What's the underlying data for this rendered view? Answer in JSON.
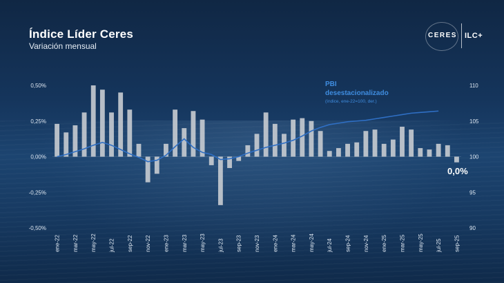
{
  "header": {
    "title": "Índice Líder Ceres",
    "subtitle": "Variación mensual"
  },
  "logo": {
    "left": "CERES",
    "right": "ILC+"
  },
  "chart_data": {
    "type": "bar",
    "title": "Índice Líder Ceres",
    "subtitle": "Variación mensual",
    "y_left": {
      "range": [
        -0.5,
        0.5
      ],
      "ticks": [
        0.5,
        0.25,
        0,
        -0.25,
        -0.5
      ],
      "tick_labels": [
        "0,50%",
        "0,25%",
        "0,00%",
        "-0,25%",
        "-0,50%"
      ]
    },
    "y_right": {
      "range": [
        90,
        110
      ],
      "ticks": [
        110,
        105,
        100,
        95,
        90
      ],
      "tick_labels": [
        "110",
        "105",
        "100",
        "95",
        "90"
      ]
    },
    "x_tick_labels": [
      "ene-22",
      "mar-22",
      "may-22",
      "jul-22",
      "sep-22",
      "nov-22",
      "ene-23",
      "mar-23",
      "may-23",
      "jul-23",
      "sep-23",
      "nov-23",
      "ene-24",
      "mar-24",
      "may-24",
      "jul-24",
      "sep-24",
      "nov-24",
      "ene-25",
      "mar-25",
      "may-25",
      "jul-25",
      "sep-25"
    ],
    "categories": [
      "ene-22",
      "feb-22",
      "mar-22",
      "abr-22",
      "may-22",
      "jun-22",
      "jul-22",
      "ago-22",
      "sep-22",
      "oct-22",
      "nov-22",
      "dic-22",
      "ene-23",
      "feb-23",
      "mar-23",
      "abr-23",
      "may-23",
      "jun-23",
      "jul-23",
      "ago-23",
      "sep-23",
      "oct-23",
      "nov-23",
      "dic-23",
      "ene-24",
      "feb-24",
      "mar-24",
      "abr-24",
      "may-24",
      "jun-24",
      "jul-24",
      "ago-24",
      "sep-24",
      "oct-24",
      "nov-24",
      "dic-24",
      "ene-25",
      "feb-25",
      "mar-25",
      "abr-25",
      "may-25",
      "jun-25",
      "jul-25",
      "ago-25",
      "sep-25"
    ],
    "series": [
      {
        "name": "Índice Líder Ceres (variación mensual)",
        "axis": "left",
        "unit": "%",
        "color": "#c8ccd2",
        "values": [
          0.23,
          0.17,
          0.22,
          0.31,
          0.5,
          0.47,
          0.31,
          0.45,
          0.33,
          0.09,
          -0.18,
          -0.12,
          0.09,
          0.33,
          0.2,
          0.32,
          0.26,
          -0.06,
          -0.34,
          -0.08,
          -0.03,
          0.08,
          0.16,
          0.31,
          0.23,
          0.16,
          0.26,
          0.27,
          0.25,
          0.18,
          0.04,
          0.06,
          0.09,
          0.1,
          0.18,
          0.19,
          0.09,
          0.12,
          0.21,
          0.19,
          0.06,
          0.05,
          0.09,
          0.08,
          -0.04
        ]
      },
      {
        "name": "PBI desestacionalizado",
        "axis": "right",
        "color": "#2f6fc4",
        "values": [
          100.0,
          100.3,
          100.7,
          101.1,
          101.6,
          102.0,
          101.6,
          101.0,
          100.4,
          99.9,
          99.3,
          99.5,
          100.2,
          101.4,
          102.5,
          101.3,
          100.6,
          100.3,
          99.6,
          99.7,
          100.0,
          100.5,
          100.9,
          101.3,
          101.6,
          101.9,
          102.3,
          102.9,
          103.6,
          104.1,
          104.5,
          104.7,
          104.9,
          105.0,
          105.1,
          105.3,
          105.5,
          105.7,
          105.9,
          106.1,
          106.2,
          106.3,
          106.4,
          null,
          null
        ]
      }
    ],
    "annotations": {
      "pbi_title_line1": "PBI",
      "pbi_title_line2": "desestacionalizado",
      "pbi_note": "(índice, ene-22=100, der.)",
      "end_value_label": "0,0%"
    },
    "grid": false,
    "legend": "inline-annotation"
  }
}
